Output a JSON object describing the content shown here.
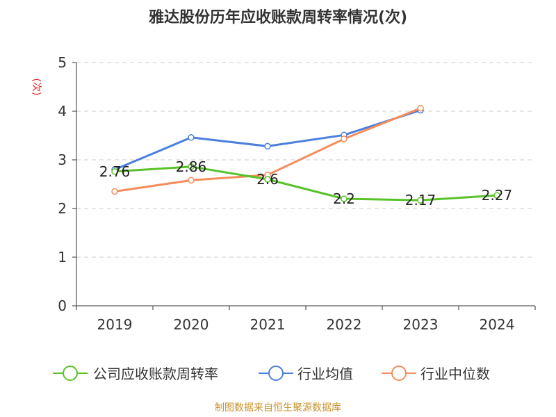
{
  "chart_data": {
    "type": "line",
    "title": "雅达股份历年应收账款周转率情况(次)",
    "ylabel": "(次)",
    "xlabel": "",
    "categories": [
      "2019",
      "2020",
      "2021",
      "2022",
      "2023",
      "2024"
    ],
    "ylim": [
      0,
      5
    ],
    "yticks": [
      0,
      1,
      2,
      3,
      4,
      5
    ],
    "grid": true,
    "legend_position": "bottom",
    "series": [
      {
        "name": "公司应收账款周转率",
        "color": "#5ac229",
        "values": [
          2.76,
          2.86,
          2.6,
          2.2,
          2.17,
          2.27
        ],
        "labels": [
          "2.76",
          "2.86",
          "2.6",
          "2.2",
          "2.17",
          "2.27"
        ]
      },
      {
        "name": "行业均值",
        "color": "#4a7fdc",
        "values": [
          2.8,
          3.46,
          3.28,
          3.51,
          4.02,
          null
        ]
      },
      {
        "name": "行业中位数",
        "color": "#f58c5a",
        "values": [
          2.35,
          2.58,
          2.69,
          3.43,
          4.06,
          null
        ]
      }
    ],
    "source_note": "制图数据来自恒生聚源数据库"
  }
}
